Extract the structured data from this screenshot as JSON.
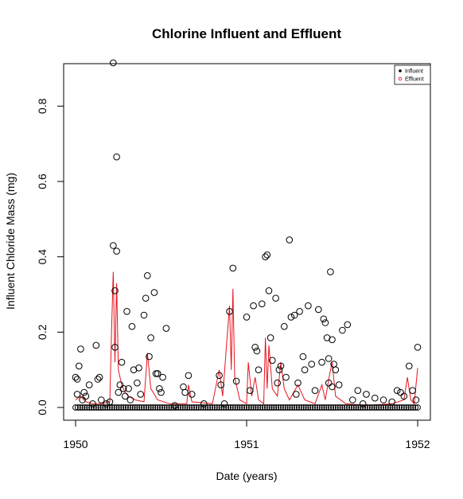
{
  "chart_data": {
    "type": "scatter",
    "title": "Chlorine Influent and Effluent",
    "xlabel": "Date (years)",
    "ylabel": "Influent Chloride Mass (mg)",
    "xlim": [
      1950.0,
      1952.0
    ],
    "ylim": [
      0.0,
      0.9
    ],
    "x_ticks": [
      "1950",
      "1951",
      "1952"
    ],
    "y_ticks": [
      "0.0",
      "0.2",
      "0.4",
      "0.6",
      "0.8"
    ],
    "grid": false,
    "legend": {
      "position": "top-right",
      "entries": [
        "Influent",
        "Effluent"
      ]
    },
    "series": [
      {
        "name": "Influent",
        "style": "points",
        "color": "#000000",
        "values": [
          [
            1950.0,
            0.08
          ],
          [
            1950.01,
            0.035
          ],
          [
            1950.01,
            0.075
          ],
          [
            1950.02,
            0.11
          ],
          [
            1950.03,
            0.155
          ],
          [
            1950.04,
            0.02
          ],
          [
            1950.05,
            0.04
          ],
          [
            1950.06,
            0.03
          ],
          [
            1950.08,
            0.06
          ],
          [
            1950.1,
            0.01
          ],
          [
            1950.12,
            0.165
          ],
          [
            1950.13,
            0.075
          ],
          [
            1950.14,
            0.08
          ],
          [
            1950.15,
            0.02
          ],
          [
            1950.18,
            0.01
          ],
          [
            1950.2,
            0.015
          ],
          [
            1950.22,
            0.915
          ],
          [
            1950.22,
            0.43
          ],
          [
            1950.23,
            0.31
          ],
          [
            1950.23,
            0.16
          ],
          [
            1950.24,
            0.665
          ],
          [
            1950.24,
            0.415
          ],
          [
            1950.25,
            0.04
          ],
          [
            1950.26,
            0.06
          ],
          [
            1950.27,
            0.12
          ],
          [
            1950.28,
            0.05
          ],
          [
            1950.29,
            0.03
          ],
          [
            1950.3,
            0.255
          ],
          [
            1950.31,
            0.05
          ],
          [
            1950.32,
            0.02
          ],
          [
            1950.33,
            0.215
          ],
          [
            1950.34,
            0.1
          ],
          [
            1950.36,
            0.065
          ],
          [
            1950.37,
            0.105
          ],
          [
            1950.38,
            0.035
          ],
          [
            1950.4,
            0.245
          ],
          [
            1950.41,
            0.29
          ],
          [
            1950.42,
            0.35
          ],
          [
            1950.43,
            0.135
          ],
          [
            1950.44,
            0.185
          ],
          [
            1950.46,
            0.305
          ],
          [
            1950.47,
            0.09
          ],
          [
            1950.48,
            0.09
          ],
          [
            1950.49,
            0.05
          ],
          [
            1950.5,
            0.04
          ],
          [
            1950.51,
            0.08
          ],
          [
            1950.53,
            0.21
          ],
          [
            1950.58,
            0.005
          ],
          [
            1950.63,
            0.055
          ],
          [
            1950.64,
            0.04
          ],
          [
            1950.66,
            0.085
          ],
          [
            1950.68,
            0.035
          ],
          [
            1950.75,
            0.01
          ],
          [
            1950.84,
            0.085
          ],
          [
            1950.85,
            0.06
          ],
          [
            1950.87,
            0.01
          ],
          [
            1950.9,
            0.255
          ],
          [
            1950.92,
            0.37
          ],
          [
            1950.94,
            0.07
          ],
          [
            1951.0,
            0.24
          ],
          [
            1951.02,
            0.045
          ],
          [
            1951.04,
            0.27
          ],
          [
            1951.05,
            0.16
          ],
          [
            1951.06,
            0.15
          ],
          [
            1951.07,
            0.1
          ],
          [
            1951.09,
            0.275
          ],
          [
            1951.11,
            0.4
          ],
          [
            1951.12,
            0.405
          ],
          [
            1951.13,
            0.31
          ],
          [
            1951.14,
            0.185
          ],
          [
            1951.15,
            0.125
          ],
          [
            1951.17,
            0.29
          ],
          [
            1951.18,
            0.065
          ],
          [
            1951.19,
            0.1
          ],
          [
            1951.2,
            0.11
          ],
          [
            1951.22,
            0.215
          ],
          [
            1951.23,
            0.08
          ],
          [
            1951.25,
            0.445
          ],
          [
            1951.26,
            0.24
          ],
          [
            1951.28,
            0.245
          ],
          [
            1951.29,
            0.035
          ],
          [
            1951.3,
            0.065
          ],
          [
            1951.31,
            0.255
          ],
          [
            1951.33,
            0.135
          ],
          [
            1951.34,
            0.1
          ],
          [
            1951.36,
            0.27
          ],
          [
            1951.38,
            0.115
          ],
          [
            1951.4,
            0.045
          ],
          [
            1951.42,
            0.26
          ],
          [
            1951.44,
            0.12
          ],
          [
            1951.45,
            0.235
          ],
          [
            1951.46,
            0.225
          ],
          [
            1951.47,
            0.185
          ],
          [
            1951.48,
            0.13
          ],
          [
            1951.48,
            0.065
          ],
          [
            1951.49,
            0.36
          ],
          [
            1951.5,
            0.18
          ],
          [
            1951.5,
            0.055
          ],
          [
            1951.51,
            0.115
          ],
          [
            1951.52,
            0.1
          ],
          [
            1951.54,
            0.06
          ],
          [
            1951.56,
            0.205
          ],
          [
            1951.59,
            0.22
          ],
          [
            1951.62,
            0.02
          ],
          [
            1951.65,
            0.045
          ],
          [
            1951.68,
            0.01
          ],
          [
            1951.7,
            0.035
          ],
          [
            1951.75,
            0.025
          ],
          [
            1951.8,
            0.02
          ],
          [
            1951.85,
            0.015
          ],
          [
            1951.88,
            0.045
          ],
          [
            1951.9,
            0.04
          ],
          [
            1951.92,
            0.03
          ],
          [
            1951.95,
            0.11
          ],
          [
            1951.97,
            0.045
          ],
          [
            1951.99,
            0.02
          ],
          [
            1952.0,
            0.16
          ]
        ]
      },
      {
        "name": "Effluent",
        "style": "line",
        "color": "#e8141e",
        "values": [
          [
            1950.0,
            0.02
          ],
          [
            1950.03,
            0.03
          ],
          [
            1950.06,
            0.015
          ],
          [
            1950.1,
            0.01
          ],
          [
            1950.15,
            0.01
          ],
          [
            1950.2,
            0.015
          ],
          [
            1950.21,
            0.2
          ],
          [
            1950.22,
            0.36
          ],
          [
            1950.23,
            0.12
          ],
          [
            1950.24,
            0.33
          ],
          [
            1950.25,
            0.1
          ],
          [
            1950.27,
            0.06
          ],
          [
            1950.29,
            0.04
          ],
          [
            1950.31,
            0.03
          ],
          [
            1950.35,
            0.02
          ],
          [
            1950.4,
            0.015
          ],
          [
            1950.42,
            0.145
          ],
          [
            1950.44,
            0.05
          ],
          [
            1950.48,
            0.02
          ],
          [
            1950.55,
            0.01
          ],
          [
            1950.65,
            0.01
          ],
          [
            1950.66,
            0.06
          ],
          [
            1950.68,
            0.015
          ],
          [
            1950.8,
            0.01
          ],
          [
            1950.84,
            0.1
          ],
          [
            1950.86,
            0.03
          ],
          [
            1950.9,
            0.27
          ],
          [
            1950.91,
            0.1
          ],
          [
            1950.92,
            0.315
          ],
          [
            1950.93,
            0.08
          ],
          [
            1950.96,
            0.02
          ],
          [
            1951.0,
            0.01
          ],
          [
            1951.01,
            0.12
          ],
          [
            1951.03,
            0.03
          ],
          [
            1951.05,
            0.08
          ],
          [
            1951.07,
            0.02
          ],
          [
            1951.1,
            0.01
          ],
          [
            1951.11,
            0.185
          ],
          [
            1951.12,
            0.05
          ],
          [
            1951.13,
            0.165
          ],
          [
            1951.15,
            0.05
          ],
          [
            1951.18,
            0.03
          ],
          [
            1951.2,
            0.12
          ],
          [
            1951.22,
            0.05
          ],
          [
            1951.25,
            0.02
          ],
          [
            1951.3,
            0.06
          ],
          [
            1951.34,
            0.02
          ],
          [
            1951.4,
            0.01
          ],
          [
            1951.44,
            0.06
          ],
          [
            1951.46,
            0.02
          ],
          [
            1951.48,
            0.075
          ],
          [
            1951.5,
            0.12
          ],
          [
            1951.52,
            0.03
          ],
          [
            1951.58,
            0.01
          ],
          [
            1951.7,
            0.005
          ],
          [
            1951.85,
            0.01
          ],
          [
            1951.92,
            0.02
          ],
          [
            1951.94,
            0.08
          ],
          [
            1951.96,
            0.02
          ],
          [
            1951.98,
            0.01
          ],
          [
            1952.0,
            0.105
          ]
        ]
      }
    ]
  }
}
